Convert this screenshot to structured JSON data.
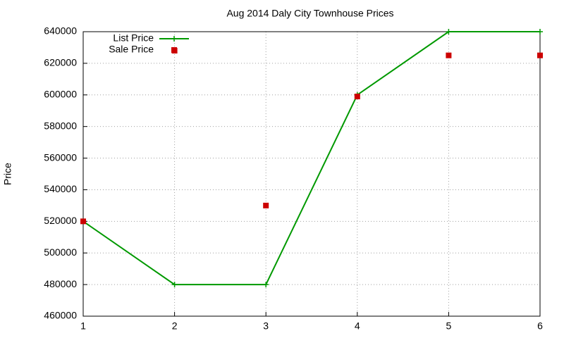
{
  "chart_data": {
    "type": "line",
    "title": "Aug 2014 Daly City Townhouse Prices",
    "y_label": "Price",
    "x": [
      1,
      2,
      3,
      4,
      5,
      6
    ],
    "series": [
      {
        "name": "List Price",
        "color": "#009900",
        "style": "linespoints",
        "values": [
          520000,
          480000,
          480000,
          600000,
          640000,
          640000
        ]
      },
      {
        "name": "Sale Price",
        "color": "#cc0000",
        "style": "points",
        "values": [
          520000,
          628000,
          530000,
          599000,
          625000,
          625000
        ]
      }
    ],
    "xlim": [
      1,
      6
    ],
    "xticks": [
      1,
      2,
      3,
      4,
      5,
      6
    ],
    "ylim": [
      460000,
      640000
    ],
    "yticks": [
      460000,
      480000,
      500000,
      520000,
      540000,
      560000,
      580000,
      600000,
      620000,
      640000
    ],
    "grid": true,
    "legend": "top-left"
  }
}
